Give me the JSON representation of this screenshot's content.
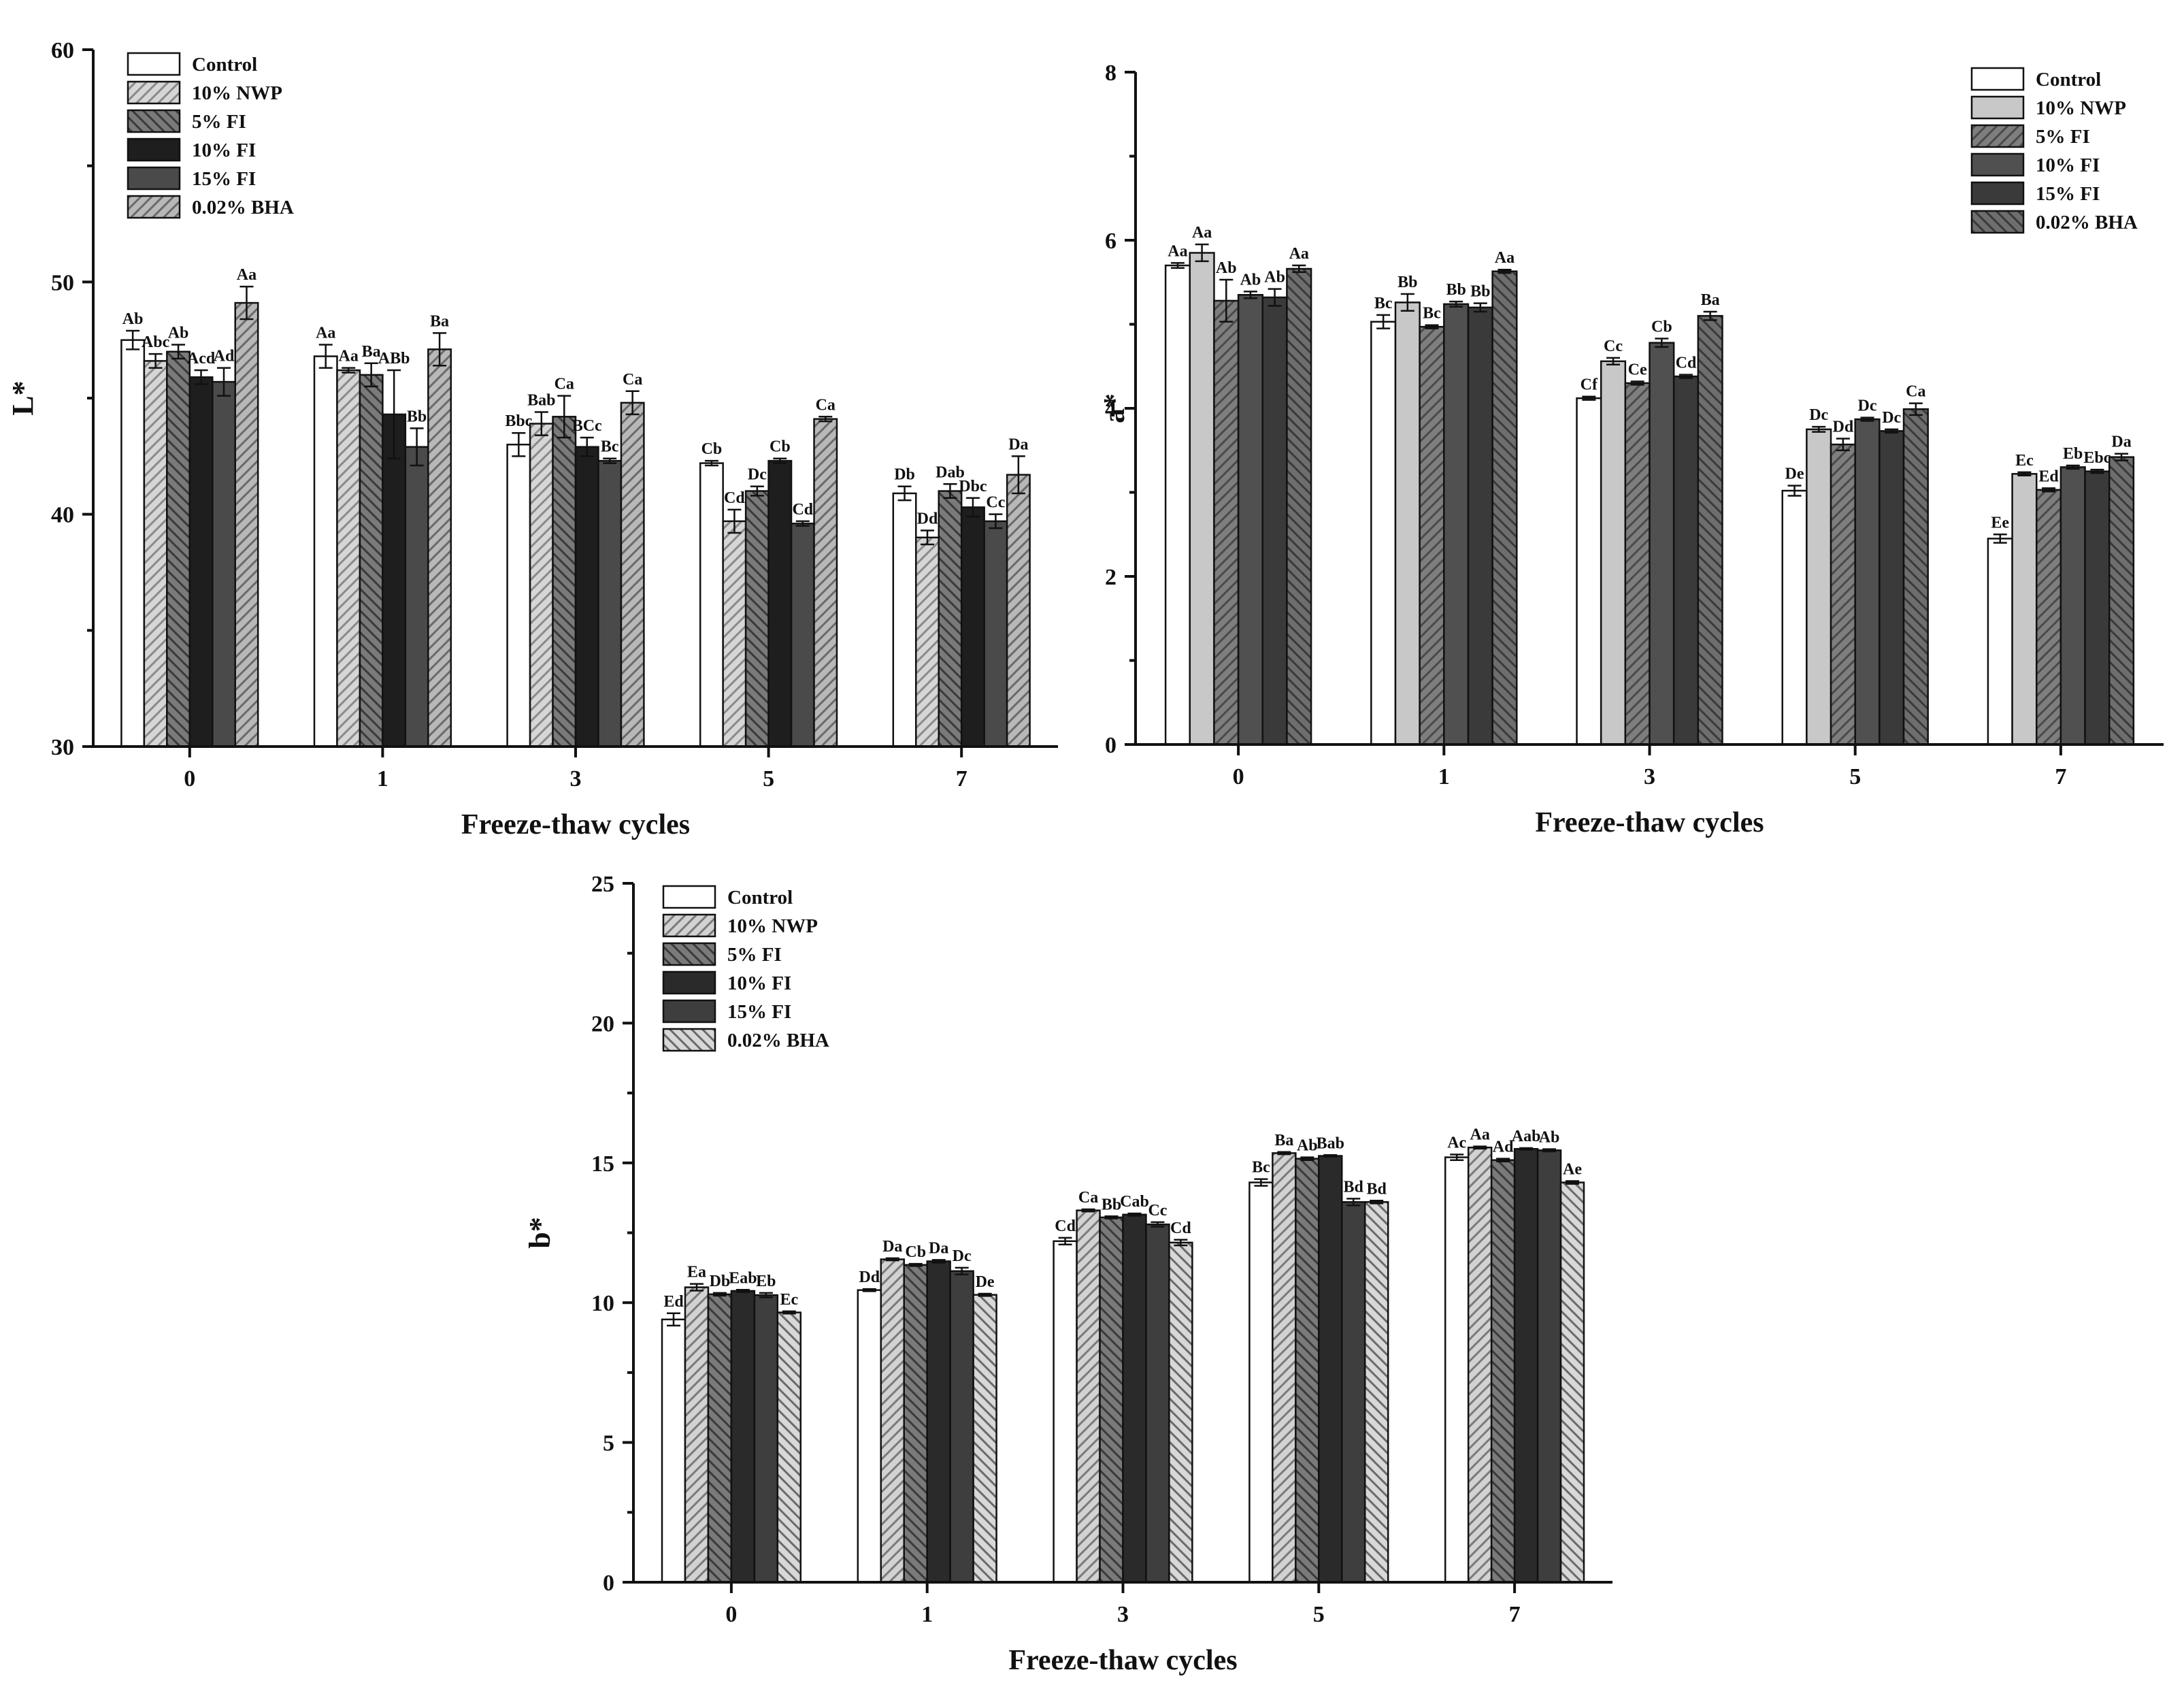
{
  "patterns": {
    "Control": {
      "kind": "solid",
      "fill": "#ffffff"
    },
    "10% NWP": {
      "kind": "hatch-up",
      "fill": "#d6d6d6",
      "line": "#8a8a8a"
    },
    "5% FI": {
      "kind": "hatch-down",
      "fill": "#7a7a7a",
      "line": "#3a3a3a"
    },
    "10% FI": {
      "kind": "solid",
      "fill": "#1e1e1e"
    },
    "15% FI": {
      "kind": "solid",
      "fill": "#4a4a4a"
    },
    "0.02% BHA": {
      "kind": "hatch-up",
      "fill": "#b8b8b8",
      "line": "#6a6a6a"
    },
    "a_Control": {
      "kind": "solid",
      "fill": "#ffffff"
    },
    "a_10% NWP": {
      "kind": "solid",
      "fill": "#c8c8c8"
    },
    "a_5% FI": {
      "kind": "hatch-up",
      "fill": "#7e7e7e",
      "line": "#4a4a4a"
    },
    "a_10% FI": {
      "kind": "solid",
      "fill": "#505050"
    },
    "a_15% FI": {
      "kind": "solid",
      "fill": "#3a3a3a"
    },
    "a_0.02% BHA": {
      "kind": "hatch-down",
      "fill": "#6e6e6e",
      "line": "#3a3a3a"
    },
    "b_Control": {
      "kind": "solid",
      "fill": "#ffffff"
    },
    "b_10% NWP": {
      "kind": "hatch-up",
      "fill": "#d2d2d2",
      "line": "#7a7a7a"
    },
    "b_5% FI": {
      "kind": "hatch-down",
      "fill": "#7a7a7a",
      "line": "#3a3a3a"
    },
    "b_10% FI": {
      "kind": "solid",
      "fill": "#2a2a2a"
    },
    "b_15% FI": {
      "kind": "solid",
      "fill": "#3e3e3e"
    },
    "b_0.02% BHA": {
      "kind": "hatch-down",
      "fill": "#d8d8d8",
      "line": "#6a6a6a"
    }
  },
  "chart_data": [
    {
      "id": "L",
      "type": "bar",
      "ylabel": "L*",
      "xlabel": "Freeze-thaw cycles",
      "ylim": [
        30,
        60
      ],
      "yticks": [
        30,
        40,
        50,
        60
      ],
      "categories": [
        "0",
        "1",
        "3",
        "5",
        "7"
      ],
      "legend_position": "top-left",
      "pattern_prefix": "",
      "series": [
        {
          "name": "Control",
          "values": [
            47.5,
            46.8,
            43.0,
            42.2,
            40.9
          ],
          "errors": [
            0.4,
            0.5,
            0.5,
            0.1,
            0.3
          ],
          "labels": [
            "Ab",
            "Aa",
            "Bbc",
            "Cb",
            "Db"
          ]
        },
        {
          "name": "10% NWP",
          "values": [
            46.6,
            46.2,
            43.9,
            39.7,
            39.0
          ],
          "errors": [
            0.3,
            0.1,
            0.5,
            0.5,
            0.3
          ],
          "labels": [
            "Abc",
            "Aa",
            "Bab",
            "Cd",
            "Dd"
          ]
        },
        {
          "name": "5% FI",
          "values": [
            47.0,
            46.0,
            44.2,
            41.0,
            41.0
          ],
          "errors": [
            0.3,
            0.5,
            0.9,
            0.2,
            0.3
          ],
          "labels": [
            "Ab",
            "Ba",
            "Ca",
            "Dc",
            "Dab"
          ]
        },
        {
          "name": "10% FI",
          "values": [
            45.9,
            44.3,
            42.9,
            42.3,
            40.3
          ],
          "errors": [
            0.3,
            1.9,
            0.4,
            0.1,
            0.4
          ],
          "labels": [
            "Acd",
            "ABb",
            "BCc",
            "Cb",
            "Dbc"
          ]
        },
        {
          "name": "15% FI",
          "values": [
            45.7,
            42.9,
            42.3,
            39.6,
            39.7
          ],
          "errors": [
            0.6,
            0.8,
            0.1,
            0.1,
            0.3
          ],
          "labels": [
            "Ad",
            "Bb",
            "Bc",
            "Cd",
            "Cc"
          ]
        },
        {
          "name": "0.02% BHA",
          "values": [
            49.1,
            47.1,
            44.8,
            44.1,
            41.7
          ],
          "errors": [
            0.7,
            0.7,
            0.5,
            0.1,
            0.8
          ],
          "labels": [
            "Aa",
            "Ba",
            "Ca",
            "Ca",
            "Da"
          ]
        }
      ]
    },
    {
      "id": "a",
      "type": "bar",
      "ylabel": "a*",
      "xlabel": "Freeze-thaw cycles",
      "ylim": [
        0,
        8
      ],
      "yticks": [
        0,
        2,
        4,
        6,
        8
      ],
      "categories": [
        "0",
        "1",
        "3",
        "5",
        "7"
      ],
      "legend_position": "top-right",
      "pattern_prefix": "a_",
      "series": [
        {
          "name": "Control",
          "values": [
            5.7,
            5.03,
            4.12,
            3.02,
            2.45
          ],
          "errors": [
            0.03,
            0.08,
            0.02,
            0.06,
            0.05
          ],
          "labels": [
            "Aa",
            "Bc",
            "Cf",
            "De",
            "Ee"
          ]
        },
        {
          "name": "10% NWP",
          "values": [
            5.85,
            5.26,
            4.56,
            3.75,
            3.22
          ],
          "errors": [
            0.1,
            0.1,
            0.04,
            0.03,
            0.02
          ],
          "labels": [
            "Aa",
            "Bb",
            "Cc",
            "Dc",
            "Ec"
          ]
        },
        {
          "name": "5% FI",
          "values": [
            5.28,
            4.97,
            4.3,
            3.57,
            3.03
          ],
          "errors": [
            0.25,
            0.02,
            0.02,
            0.07,
            0.02
          ],
          "labels": [
            "Ab",
            "Bc",
            "Ce",
            "Dd",
            "Ed"
          ]
        },
        {
          "name": "10% FI",
          "values": [
            5.35,
            5.24,
            4.78,
            3.87,
            3.3
          ],
          "errors": [
            0.04,
            0.03,
            0.05,
            0.02,
            0.02
          ],
          "labels": [
            "Ab",
            "Bb",
            "Cb",
            "Dc",
            "Eb"
          ]
        },
        {
          "name": "15% FI",
          "values": [
            5.32,
            5.2,
            4.38,
            3.73,
            3.25
          ],
          "errors": [
            0.1,
            0.05,
            0.02,
            0.02,
            0.02
          ],
          "labels": [
            "Ab",
            "Bb",
            "Cd",
            "Dc",
            "Ebc"
          ]
        },
        {
          "name": "0.02% BHA",
          "values": [
            5.66,
            5.63,
            5.1,
            3.99,
            3.42
          ],
          "errors": [
            0.04,
            0.02,
            0.05,
            0.07,
            0.04
          ],
          "labels": [
            "Aa",
            "Aa",
            "Ba",
            "Ca",
            "Da"
          ]
        }
      ]
    },
    {
      "id": "b",
      "type": "bar",
      "ylabel": "b*",
      "xlabel": "Freeze-thaw cycles",
      "ylim": [
        0,
        25
      ],
      "yticks": [
        0,
        5,
        10,
        15,
        20,
        25
      ],
      "categories": [
        "0",
        "1",
        "3",
        "5",
        "7"
      ],
      "legend_position": "top-left",
      "pattern_prefix": "b_",
      "series": [
        {
          "name": "Control",
          "values": [
            9.4,
            10.45,
            12.2,
            14.3,
            15.2
          ],
          "errors": [
            0.22,
            0.04,
            0.12,
            0.12,
            0.1
          ],
          "labels": [
            "Ed",
            "Dd",
            "Cd",
            "Bc",
            "Ac"
          ]
        },
        {
          "name": "10% NWP",
          "values": [
            10.55,
            11.55,
            13.3,
            15.35,
            15.55
          ],
          "errors": [
            0.12,
            0.04,
            0.04,
            0.04,
            0.04
          ],
          "labels": [
            "Ea",
            "Da",
            "Ca",
            "Ba",
            "Aa"
          ]
        },
        {
          "name": "5% FI",
          "values": [
            10.3,
            11.35,
            13.05,
            15.15,
            15.1
          ],
          "errors": [
            0.05,
            0.04,
            0.04,
            0.05,
            0.05
          ],
          "labels": [
            "Db",
            "Cb",
            "Bb",
            "Ab",
            "Ad"
          ]
        },
        {
          "name": "10% FI",
          "values": [
            10.42,
            11.48,
            13.15,
            15.25,
            15.5
          ],
          "errors": [
            0.04,
            0.05,
            0.04,
            0.03,
            0.03
          ],
          "labels": [
            "Eab",
            "Da",
            "Cab",
            "Bab",
            "Aab"
          ]
        },
        {
          "name": "15% FI",
          "values": [
            10.27,
            11.13,
            12.8,
            13.6,
            15.45
          ],
          "errors": [
            0.08,
            0.12,
            0.08,
            0.12,
            0.04
          ],
          "labels": [
            "Eb",
            "Dc",
            "Cc",
            "Bd",
            "Ab"
          ]
        },
        {
          "name": "0.02% BHA",
          "values": [
            9.65,
            10.28,
            12.15,
            13.6,
            14.3
          ],
          "errors": [
            0.04,
            0.04,
            0.1,
            0.05,
            0.05
          ],
          "labels": [
            "Ec",
            "De",
            "Cd",
            "Bd",
            "Ae"
          ]
        }
      ]
    }
  ]
}
